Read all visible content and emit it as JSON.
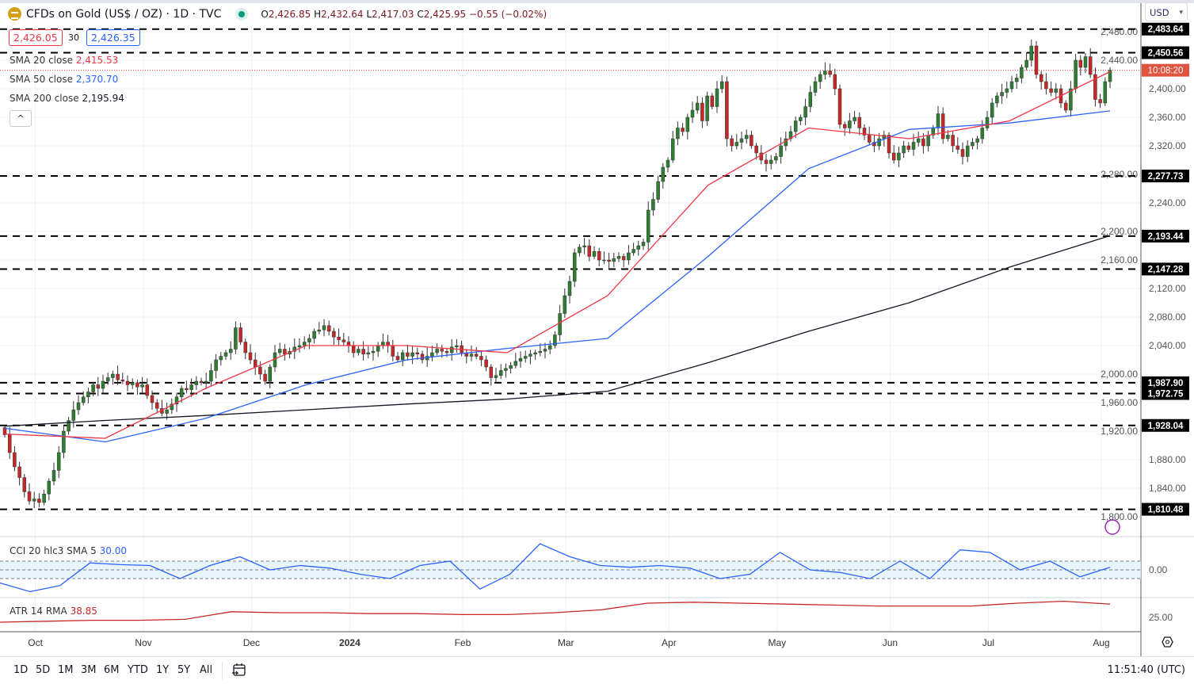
{
  "header": {
    "symbol_title": "CFDs on Gold (US$ / OZ) · 1D · TVC",
    "open_label": "O",
    "open": "2,426.85",
    "high_label": "H",
    "high": "2,432.64",
    "low_label": "L",
    "low": "2,417.03",
    "close_label": "C",
    "close": "2,425.95",
    "change": "−0.55 (−0.02%)",
    "bid": "2,426.05",
    "spread": "30",
    "ask": "2,426.35",
    "currency": "USD"
  },
  "legend": {
    "sma20_label": "SMA 20 close",
    "sma20_value": "2,415.53",
    "sma50_label": "SMA 50 close",
    "sma50_value": "2,370.70",
    "sma200_label": "SMA 200 close",
    "sma200_value": "2,195.94",
    "cci_label": "CCI 20 hlc3 SMA 5",
    "cci_value": "30.00",
    "atr_label": "ATR 14 RMA",
    "atr_value": "38.85"
  },
  "colors": {
    "up": "#2e7d32",
    "down": "#c62828",
    "sma20": "#f23645",
    "sma50": "#2962ff",
    "sma200": "#131722",
    "cci": "#2962ff",
    "atr": "#c62828",
    "countdown": "#e0533f"
  },
  "countdown": "10:08:20",
  "time_axis": [
    "Oct",
    "Nov",
    "Dec",
    "2024",
    "Feb",
    "Mar",
    "Apr",
    "May",
    "Jun",
    "Jul",
    "Aug"
  ],
  "toolbar": {
    "ranges": [
      "1D",
      "5D",
      "1M",
      "3M",
      "6M",
      "YTD",
      "1Y",
      "5Y",
      "All"
    ],
    "clock": "11:51:40 (UTC)"
  },
  "chart_data": {
    "type": "candlestick",
    "title": "CFDs on Gold (US$ / OZ) · 1D · TVC",
    "ylim": [
      1790,
      2490
    ],
    "y_ticks": [
      "1,800.00",
      "1,840.00",
      "1,880.00",
      "1,920.00",
      "1,960.00",
      "2,000.00",
      "2,040.00",
      "2,080.00",
      "2,120.00",
      "2,160.00",
      "2,200.00",
      "2,240.00",
      "2,280.00",
      "2,320.00",
      "2,360.00",
      "2,400.00",
      "2,440.00",
      "2,480.00"
    ],
    "grid": true,
    "closes": [
      1915,
      1890,
      1870,
      1855,
      1835,
      1822,
      1825,
      1820,
      1832,
      1850,
      1865,
      1890,
      1920,
      1935,
      1950,
      1960,
      1968,
      1975,
      1985,
      1980,
      1990,
      1995,
      2000,
      1992,
      1990,
      1985,
      1988,
      1982,
      1985,
      1970,
      1960,
      1952,
      1945,
      1950,
      1958,
      1968,
      1980,
      1978,
      1985,
      1990,
      1988,
      1990,
      2005,
      2020,
      2025,
      2030,
      2035,
      2065,
      2045,
      2030,
      2020,
      2010,
      2000,
      1990,
      2010,
      2030,
      2035,
      2028,
      2032,
      2038,
      2040,
      2045,
      2050,
      2060,
      2062,
      2068,
      2060,
      2052,
      2048,
      2045,
      2040,
      2030,
      2035,
      2028,
      2030,
      2032,
      2040,
      2045,
      2040,
      2025,
      2020,
      2030,
      2025,
      2030,
      2028,
      2020,
      2025,
      2030,
      2035,
      2032,
      2030,
      2038,
      2040,
      2030,
      2025,
      2028,
      2025,
      2020,
      2010,
      1995,
      1998,
      2005,
      2008,
      2012,
      2018,
      2022,
      2025,
      2028,
      2030,
      2032,
      2035,
      2040,
      2055,
      2085,
      2110,
      2130,
      2170,
      2178,
      2180,
      2165,
      2172,
      2160,
      2160,
      2158,
      2162,
      2165,
      2160,
      2170,
      2175,
      2180,
      2185,
      2230,
      2245,
      2270,
      2290,
      2300,
      2330,
      2345,
      2340,
      2360,
      2370,
      2380,
      2355,
      2390,
      2375,
      2400,
      2410,
      2330,
      2320,
      2325,
      2330,
      2335,
      2320,
      2310,
      2300,
      2295,
      2300,
      2305,
      2320,
      2330,
      2340,
      2355,
      2360,
      2375,
      2395,
      2410,
      2420,
      2425,
      2420,
      2400,
      2350,
      2345,
      2355,
      2360,
      2345,
      2335,
      2325,
      2320,
      2330,
      2335,
      2310,
      2300,
      2310,
      2320,
      2315,
      2325,
      2330,
      2320,
      2335,
      2345,
      2365,
      2330,
      2335,
      2320,
      2315,
      2305,
      2320,
      2325,
      2330,
      2345,
      2360,
      2380,
      2390,
      2395,
      2400,
      2410,
      2415,
      2430,
      2440,
      2460,
      2420,
      2410,
      2400,
      2395,
      2400,
      2380,
      2370,
      2400,
      2440,
      2430,
      2445,
      2420,
      2385,
      2380,
      2410,
      2426
    ],
    "sma20": [
      1916,
      1910,
      1980,
      2040,
      2040,
      2030,
      2110,
      2265,
      2345,
      2330,
      2355,
      2424
    ],
    "sma50": [
      1924,
      1905,
      1938,
      1985,
      2020,
      2036,
      2050,
      2165,
      2288,
      2343,
      2352,
      2369
    ],
    "sma200": [
      1927,
      1935,
      1942,
      1950,
      1958,
      1965,
      1976,
      2016,
      2060,
      2100,
      2150,
      2194
    ],
    "levels": [
      {
        "value": 2483.64,
        "label": "2,483.64"
      },
      {
        "value": 2450.56,
        "label": "2,450.56"
      },
      {
        "value": 2277.73,
        "label": "2,277.73"
      },
      {
        "value": 2193.44,
        "label": "2,193.44"
      },
      {
        "value": 2147.28,
        "label": "2,147.28"
      },
      {
        "value": 1987.9,
        "label": "1,987.90"
      },
      {
        "value": 1972.75,
        "label": "1,972.75"
      },
      {
        "value": 1928.04,
        "label": "1,928.04"
      },
      {
        "value": 1810.48,
        "label": "1,810.48"
      }
    ],
    "current_price": 2425.95,
    "cci": {
      "values": [
        -150,
        -250,
        -180,
        80,
        60,
        50,
        -100,
        50,
        150,
        0,
        50,
        20,
        -50,
        -100,
        50,
        100,
        -220,
        -50,
        300,
        150,
        50,
        30,
        50,
        20,
        -100,
        -50,
        200,
        0,
        -30,
        -100,
        100,
        -100,
        230,
        200,
        0,
        100,
        -80,
        30
      ],
      "band": [
        -100,
        100
      ],
      "tick": "0.00"
    },
    "atr": {
      "values": [
        20,
        21,
        22,
        22,
        23,
        31,
        30,
        30,
        29,
        29,
        28,
        28,
        30,
        33,
        40,
        41,
        40,
        39,
        38,
        37,
        37,
        37,
        40,
        42,
        39
      ],
      "tick": "25.00"
    }
  }
}
